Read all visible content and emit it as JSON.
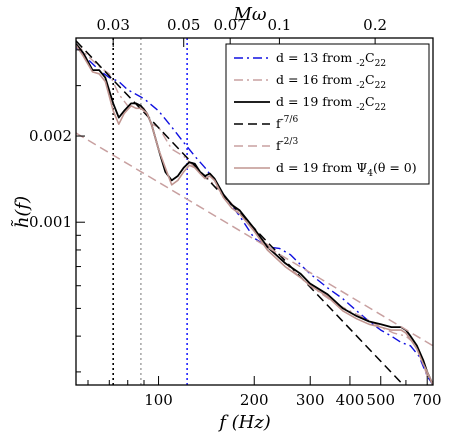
{
  "chart_data": {
    "type": "line",
    "xscale": "log",
    "yscale": "log",
    "xlim": [
      55,
      730
    ],
    "ylim": [
      0.00027,
      0.0044
    ],
    "xlabel": "f (Hz)",
    "ylabel": "h̃(f)",
    "top_axis_label": "Mω",
    "grid": false,
    "legend_position": "top-right",
    "x_ticks": [
      {
        "value": 100,
        "label": "100"
      },
      {
        "value": 200,
        "label": "200"
      },
      {
        "value": 300,
        "label": "300"
      },
      {
        "value": 400,
        "label": "400"
      },
      {
        "value": 500,
        "label": "500"
      },
      {
        "value": 700,
        "label": "700"
      }
    ],
    "y_ticks": [
      {
        "value": 0.001,
        "label": "0.001"
      },
      {
        "value": 0.002,
        "label": "0.002"
      }
    ],
    "top_ticks": [
      {
        "value": 0.03,
        "label": "0.03",
        "freq_hz": 72
      },
      {
        "value": 0.05,
        "label": "0.05",
        "freq_hz": 120
      },
      {
        "value": 0.07,
        "label": "0.07",
        "freq_hz": 168
      },
      {
        "value": 0.1,
        "label": "0.1",
        "freq_hz": 240
      },
      {
        "value": 0.2,
        "label": "0.2",
        "freq_hz": 480
      }
    ],
    "vertical_markers": [
      {
        "x": 72,
        "color": "#000000",
        "style": "dotted"
      },
      {
        "x": 88,
        "color": "#a9a9a9",
        "style": "dotted"
      },
      {
        "x": 123,
        "color": "#2020ff",
        "style": "dotted"
      }
    ],
    "series": [
      {
        "name": "d = 13 from -2C22",
        "name_parts": [
          "d = 13 from ",
          "-2",
          "C",
          "22"
        ],
        "color": "#1010e0",
        "dash": "dashdot",
        "width": 1.4,
        "x": [
          55,
          60,
          65,
          70,
          75,
          80,
          90,
          100,
          110,
          120,
          130,
          140,
          150,
          160,
          180,
          200,
          220,
          240,
          260,
          280,
          300,
          340,
          380,
          420,
          460,
          500,
          540,
          580,
          620,
          660,
          700,
          730
        ],
        "y": [
          0.0041,
          0.0037,
          0.0034,
          0.0032,
          0.0031,
          0.0029,
          0.0027,
          0.00245,
          0.00215,
          0.0019,
          0.0017,
          0.00155,
          0.0014,
          0.00125,
          0.00105,
          0.00088,
          0.00082,
          0.00081,
          0.00077,
          0.00071,
          0.00066,
          0.00059,
          0.00054,
          0.00049,
          0.00045,
          0.00042,
          0.0004,
          0.00038,
          0.00037,
          0.00034,
          0.00029,
          0.00027
        ]
      },
      {
        "name": "d = 16 from -2C22",
        "name_parts": [
          "d = 16 from ",
          "-2",
          "C",
          "22"
        ],
        "color": "#c8a0a0",
        "dash": "dashdot",
        "width": 1.4,
        "x": [
          55,
          60,
          65,
          70,
          75,
          80,
          85,
          90,
          95,
          100,
          110,
          120,
          130,
          140,
          150,
          160,
          180,
          200,
          240,
          280,
          320,
          360,
          400,
          450,
          500,
          550,
          600,
          650,
          700,
          730
        ],
        "y": [
          0.0042,
          0.0038,
          0.0035,
          0.0033,
          0.0028,
          0.00255,
          0.0026,
          0.0025,
          0.0022,
          0.00215,
          0.0018,
          0.0017,
          0.00155,
          0.00145,
          0.00135,
          0.00125,
          0.00108,
          0.00094,
          0.00075,
          0.00064,
          0.00057,
          0.00052,
          0.00049,
          0.00046,
          0.00043,
          0.00041,
          0.0004,
          0.00037,
          0.00029,
          0.00027
        ]
      },
      {
        "name": "d = 19 from -2C22",
        "name_parts": [
          "d = 19 from ",
          "-2",
          "C",
          "22"
        ],
        "color": "#000000",
        "dash": "solid",
        "width": 1.8,
        "x": [
          55,
          58,
          62,
          65,
          68,
          72,
          75,
          78,
          82,
          85,
          88,
          92,
          95,
          100,
          105,
          110,
          115,
          120,
          125,
          130,
          135,
          140,
          145,
          150,
          160,
          170,
          180,
          200,
          220,
          250,
          280,
          300,
          340,
          380,
          420,
          460,
          500,
          540,
          580,
          600,
          620,
          650,
          680,
          700,
          730
        ],
        "y": [
          0.0042,
          0.0039,
          0.0034,
          0.0034,
          0.0032,
          0.0026,
          0.00232,
          0.00245,
          0.0026,
          0.0026,
          0.00255,
          0.0024,
          0.0022,
          0.0018,
          0.0015,
          0.0014,
          0.00145,
          0.00155,
          0.00162,
          0.0016,
          0.0015,
          0.00145,
          0.00148,
          0.00142,
          0.00125,
          0.00115,
          0.0011,
          0.00095,
          0.00082,
          0.00072,
          0.00066,
          0.00061,
          0.00056,
          0.0005,
          0.00047,
          0.00045,
          0.00044,
          0.00043,
          0.00043,
          0.00042,
          0.0004,
          0.00037,
          0.00033,
          0.0003,
          0.00027
        ]
      },
      {
        "name": "f-7/6",
        "name_parts": [
          "f",
          "-7/6",
          "",
          ""
        ],
        "color": "#000000",
        "dash": "dashed",
        "width": 1.5,
        "x": [
          55,
          730
        ],
        "y": [
          0.0043,
          0.00021
        ]
      },
      {
        "name": "f-2/3",
        "name_parts": [
          "f",
          "-2/3",
          "",
          ""
        ],
        "color": "#c8a0a0",
        "dash": "dashed",
        "width": 1.5,
        "x": [
          55,
          730
        ],
        "y": [
          0.00205,
          0.00037
        ]
      },
      {
        "name": "d = 19 from Ψ4(θ = 0)",
        "name_parts": [
          "d = 19 from Ψ",
          "4",
          "(θ = 0)",
          ""
        ],
        "color": "#c09590",
        "dash": "solid",
        "width": 1.6,
        "x": [
          55,
          58,
          62,
          65,
          68,
          72,
          75,
          78,
          82,
          85,
          88,
          92,
          95,
          100,
          105,
          110,
          115,
          120,
          125,
          130,
          135,
          140,
          145,
          150,
          160,
          170,
          180,
          200,
          220,
          250,
          280,
          300,
          340,
          380,
          420,
          460,
          500,
          540,
          580,
          600,
          620,
          650,
          680,
          700,
          730
        ],
        "y": [
          0.00415,
          0.0038,
          0.00335,
          0.0033,
          0.0031,
          0.00245,
          0.0022,
          0.0024,
          0.00255,
          0.0025,
          0.0025,
          0.0024,
          0.0022,
          0.0018,
          0.00155,
          0.00135,
          0.0014,
          0.0015,
          0.00158,
          0.00155,
          0.00148,
          0.00142,
          0.00145,
          0.0014,
          0.00122,
          0.00112,
          0.00107,
          0.00093,
          0.0008,
          0.0007,
          0.00064,
          0.0006,
          0.00055,
          0.00049,
          0.00046,
          0.00044,
          0.00043,
          0.00042,
          0.00042,
          0.00041,
          0.00039,
          0.00036,
          0.00032,
          0.0003,
          0.00027
        ]
      }
    ]
  }
}
